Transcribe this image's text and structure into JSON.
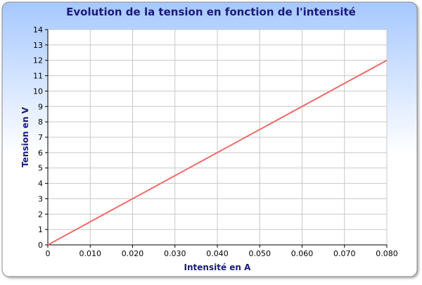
{
  "chart_data": {
    "type": "line",
    "title": "Evolution de la tension en fonction de l'intensité",
    "xlabel": "Intensité en A",
    "ylabel": "Tension en V",
    "xlim": [
      0,
      0.08
    ],
    "ylim": [
      0,
      14
    ],
    "x_ticks": [
      "0",
      "0.010",
      "0.020",
      "0.030",
      "0.040",
      "0.050",
      "0.060",
      "0.070",
      "0.080"
    ],
    "y_ticks": [
      "0",
      "1",
      "2",
      "3",
      "4",
      "5",
      "6",
      "7",
      "8",
      "9",
      "10",
      "11",
      "12",
      "13",
      "14"
    ],
    "grid": true,
    "series": [
      {
        "x": [
          0,
          0.08
        ],
        "y": [
          0,
          12
        ],
        "color": "#f06a6a"
      }
    ]
  },
  "colors": {
    "title": "#1a1a7a",
    "axis_label": "#1a1a7a",
    "tick_label": "#000000",
    "grid": "#c8c8c8",
    "frame_border": "#8a8a8a",
    "bg_top": "#a6c8ff",
    "bg_bottom": "#ffffff",
    "plot_bg": "#ffffff"
  }
}
